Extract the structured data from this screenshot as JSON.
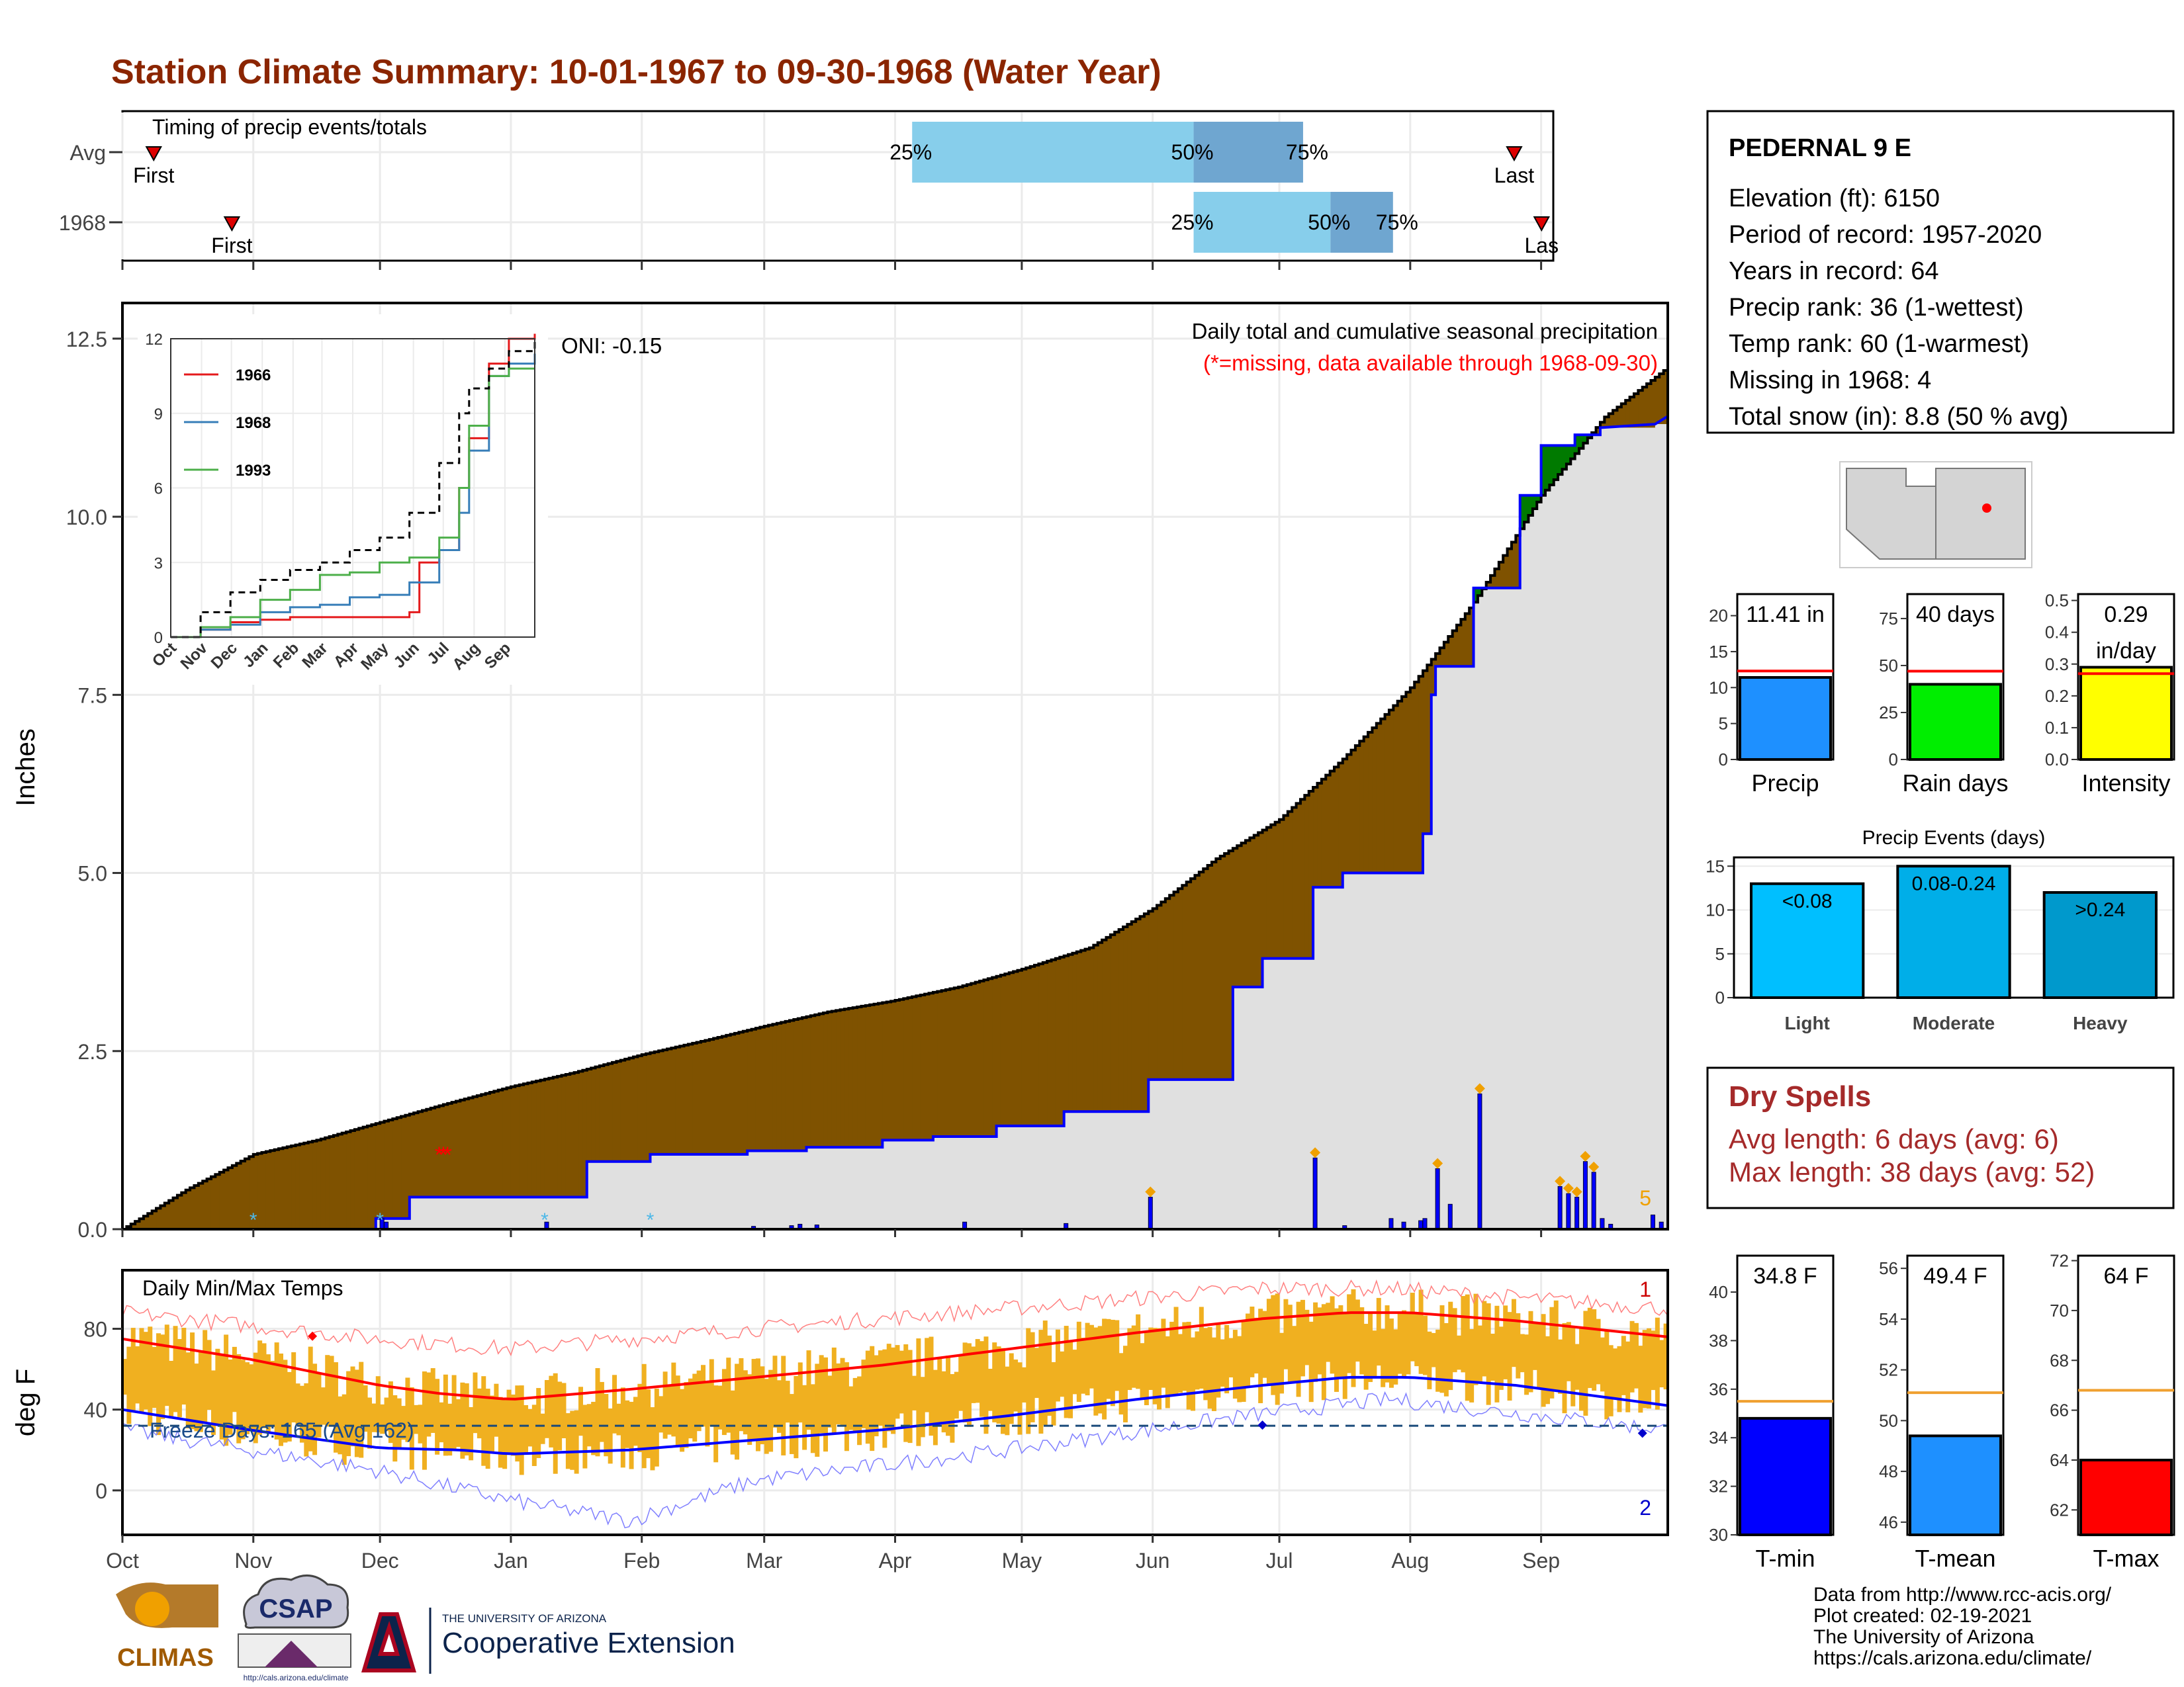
{
  "title": "Station Climate Summary: 10-01-1967 to 09-30-1968 (Water Year)",
  "colors": {
    "title": "#8B2500",
    "precip_bar": "#0000ff",
    "normal_fill": "#7f5200",
    "deficit_fill": "#007a00",
    "temp_band": "#f0b020",
    "red": "#ff0000",
    "blue": "#0000ff"
  },
  "timing": {
    "label": "Timing of precip events/totals",
    "rows": [
      {
        "name": "Avg",
        "first_label": "First",
        "last_label": "Last",
        "q25": "25%",
        "q50": "50%",
        "q75": "75%"
      },
      {
        "name": "1968",
        "first_label": "First",
        "last_label": "Las",
        "q25": "25%",
        "q50": "50%",
        "q75": "75%"
      }
    ]
  },
  "station": {
    "name": "PEDERNAL 9 E",
    "lines": [
      "Elevation (ft): 6150",
      "Period of record: 1957-2020",
      "Years in record: 64",
      "Precip rank: 36 (1-wettest)",
      "Temp rank: 60 (1-warmest)",
      "Missing in 1968: 4",
      "Total snow (in): 8.8 (50 % avg)"
    ]
  },
  "precip_panel": {
    "ylabel": "Inches",
    "subtitle": "Daily total and cumulative seasonal precipitation",
    "note": "(*=missing, data available through 1968-09-30)",
    "oni": "ONI: -0.15",
    "corner": "5"
  },
  "temp_panel": {
    "label": "Daily Min/Max Temps",
    "ylabel": "deg F",
    "freeze": "Freeze Days: 165 (Avg 162)",
    "rec_high": "1",
    "rec_low": "2"
  },
  "months": [
    "Oct",
    "Nov",
    "Dec",
    "Jan",
    "Feb",
    "Mar",
    "Apr",
    "May",
    "Jun",
    "Jul",
    "Aug",
    "Sep"
  ],
  "inset": {
    "months": [
      "Oct",
      "Nov",
      "Dec",
      "Jan",
      "Feb",
      "Mar",
      "Apr",
      "May",
      "Jun",
      "Jul",
      "Aug",
      "Sep"
    ],
    "legend": [
      {
        "name": "1966",
        "color": "#e41a1c"
      },
      {
        "name": "1968",
        "color": "#377eb8"
      },
      {
        "name": "1993",
        "color": "#4daf4a"
      }
    ]
  },
  "mini_bars": [
    {
      "label": "Precip",
      "value_text": "11.41 in",
      "color": "#1e90ff"
    },
    {
      "label": "Rain days",
      "value_text": "40 days",
      "color": "#00ee00"
    },
    {
      "label": "Intensity",
      "value_text": "0.29\nin/day",
      "color": "#ffff00"
    }
  ],
  "events": {
    "title": "Precip Events (days)",
    "bars": [
      {
        "label": "Light",
        "value_text": "<0.08",
        "color": "#00bfff"
      },
      {
        "label": "Moderate",
        "value_text": "0.08-0.24",
        "color": "#00aee8"
      },
      {
        "label": "Heavy",
        "value_text": ">0.24",
        "color": "#0099cc"
      }
    ]
  },
  "dry_spells": {
    "title": "Dry Spells",
    "avg": "Avg length: 6 days (avg: 6)",
    "max": "Max length: 38 days (avg: 52)"
  },
  "temp_bars": [
    {
      "label": "T-min",
      "value_text": "34.8 F",
      "color": "#0000ff"
    },
    {
      "label": "T-mean",
      "value_text": "49.4 F",
      "color": "#1e90ff"
    },
    {
      "label": "T-max",
      "value_text": "64 F",
      "color": "#ff0000"
    }
  ],
  "footer": [
    "Data from http://www.rcc-acis.org/",
    "Plot created: 02-19-2021",
    "The University of Arizona",
    "https://cals.arizona.edu/climate/"
  ],
  "logos": {
    "climas": "CLIMAS",
    "csap": "CSAP",
    "csap_url": "http://cals.arizona.edu/climate",
    "ua_small": "THE UNIVERSITY OF ARIZONA",
    "ua_big": "Cooperative Extension"
  },
  "chart_data": [
    {
      "type": "area",
      "name": "cumulative precipitation",
      "ylim": [
        0,
        13
      ],
      "yticks": [
        0.0,
        2.5,
        5.0,
        7.5,
        10.0,
        12.5
      ],
      "normal_cumulative": [
        [
          0,
          0
        ],
        [
          15,
          0.55
        ],
        [
          31,
          1.05
        ],
        [
          46,
          1.25
        ],
        [
          61,
          1.5
        ],
        [
          76,
          1.75
        ],
        [
          92,
          2.0
        ],
        [
          107,
          2.2
        ],
        [
          123,
          2.45
        ],
        [
          138,
          2.65
        ],
        [
          152,
          2.85
        ],
        [
          167,
          3.05
        ],
        [
          182,
          3.2
        ],
        [
          198,
          3.4
        ],
        [
          213,
          3.65
        ],
        [
          229,
          3.95
        ],
        [
          244,
          4.5
        ],
        [
          259,
          5.2
        ],
        [
          274,
          5.75
        ],
        [
          289,
          6.6
        ],
        [
          305,
          7.6
        ],
        [
          320,
          8.8
        ],
        [
          336,
          10.3
        ],
        [
          351,
          11.4
        ],
        [
          366,
          12.1
        ]
      ],
      "observed_cumulative": [
        [
          0,
          0
        ],
        [
          60,
          0
        ],
        [
          60,
          0.15
        ],
        [
          68,
          0.15
        ],
        [
          68,
          0.45
        ],
        [
          110,
          0.45
        ],
        [
          110,
          0.95
        ],
        [
          125,
          0.95
        ],
        [
          125,
          1.05
        ],
        [
          148,
          1.05
        ],
        [
          148,
          1.1
        ],
        [
          162,
          1.1
        ],
        [
          162,
          1.15
        ],
        [
          180,
          1.15
        ],
        [
          180,
          1.25
        ],
        [
          192,
          1.25
        ],
        [
          192,
          1.3
        ],
        [
          207,
          1.3
        ],
        [
          207,
          1.45
        ],
        [
          223,
          1.45
        ],
        [
          223,
          1.65
        ],
        [
          243,
          1.65
        ],
        [
          243,
          2.1
        ],
        [
          263,
          2.1
        ],
        [
          263,
          3.4
        ],
        [
          270,
          3.4
        ],
        [
          270,
          3.8
        ],
        [
          282,
          3.8
        ],
        [
          282,
          4.8
        ],
        [
          289,
          4.8
        ],
        [
          289,
          5.0
        ],
        [
          308,
          5.0
        ],
        [
          308,
          5.55
        ],
        [
          310,
          5.55
        ],
        [
          310,
          7.5
        ],
        [
          311,
          7.5
        ],
        [
          311,
          7.9
        ],
        [
          320,
          7.9
        ],
        [
          320,
          9.0
        ],
        [
          331,
          9.0
        ],
        [
          331,
          10.3
        ],
        [
          336,
          10.3
        ],
        [
          336,
          11.0
        ],
        [
          344,
          11.0
        ],
        [
          344,
          11.15
        ],
        [
          350,
          11.15
        ],
        [
          350,
          11.25
        ],
        [
          363,
          11.3
        ],
        [
          366,
          11.41
        ]
      ],
      "daily_bars": [
        [
          61,
          0.15
        ],
        [
          62,
          0.1
        ],
        [
          100,
          0.1
        ],
        [
          149,
          0.04
        ],
        [
          158,
          0.05
        ],
        [
          160,
          0.07
        ],
        [
          164,
          0.06
        ],
        [
          199,
          0.1
        ],
        [
          223,
          0.08
        ],
        [
          243,
          0.45
        ],
        [
          282,
          1.0
        ],
        [
          289,
          0.05
        ],
        [
          300,
          0.15
        ],
        [
          303,
          0.1
        ],
        [
          307,
          0.12
        ],
        [
          308,
          0.15
        ],
        [
          311,
          0.85
        ],
        [
          314,
          0.35
        ],
        [
          321,
          1.9
        ],
        [
          340,
          0.6
        ],
        [
          342,
          0.5
        ],
        [
          344,
          0.45
        ],
        [
          346,
          0.95
        ],
        [
          348,
          0.8
        ],
        [
          350,
          0.15
        ],
        [
          352,
          0.07
        ],
        [
          362,
          0.2
        ],
        [
          364,
          0.1
        ]
      ],
      "missing_days": [
        31,
        61,
        100,
        125
      ]
    },
    {
      "type": "line",
      "name": "inset cumulative",
      "ylim": [
        0,
        12
      ],
      "yticks": [
        0,
        3,
        6,
        9,
        12
      ],
      "series": [
        {
          "name": "1966",
          "values": [
            [
              0,
              0
            ],
            [
              30,
              0.3
            ],
            [
              60,
              0.6
            ],
            [
              90,
              0.7
            ],
            [
              120,
              0.8
            ],
            [
              150,
              0.8
            ],
            [
              180,
              0.8
            ],
            [
              210,
              0.8
            ],
            [
              240,
              1.0
            ],
            [
              250,
              3.0
            ],
            [
              270,
              3.5
            ],
            [
              290,
              6.0
            ],
            [
              300,
              8.0
            ],
            [
              320,
              11.0
            ],
            [
              340,
              12.0
            ],
            [
              366,
              12.2
            ]
          ]
        },
        {
          "name": "1968",
          "values": [
            [
              0,
              0
            ],
            [
              30,
              0.3
            ],
            [
              60,
              0.5
            ],
            [
              90,
              1.0
            ],
            [
              120,
              1.2
            ],
            [
              150,
              1.3
            ],
            [
              180,
              1.6
            ],
            [
              210,
              1.7
            ],
            [
              240,
              2.2
            ],
            [
              270,
              3.5
            ],
            [
              290,
              5.0
            ],
            [
              300,
              7.5
            ],
            [
              320,
              10.5
            ],
            [
              340,
              11.0
            ],
            [
              366,
              11.4
            ]
          ]
        },
        {
          "name": "1993",
          "values": [
            [
              0,
              0
            ],
            [
              30,
              0.4
            ],
            [
              60,
              0.8
            ],
            [
              90,
              1.5
            ],
            [
              120,
              1.9
            ],
            [
              150,
              2.5
            ],
            [
              180,
              2.6
            ],
            [
              210,
              3.0
            ],
            [
              240,
              3.2
            ],
            [
              270,
              4.0
            ],
            [
              290,
              6.0
            ],
            [
              300,
              8.5
            ],
            [
              320,
              10.5
            ],
            [
              340,
              10.8
            ],
            [
              366,
              10.8
            ]
          ]
        },
        {
          "name": "avg",
          "values": [
            [
              0,
              0
            ],
            [
              30,
              1.0
            ],
            [
              60,
              1.8
            ],
            [
              90,
              2.3
            ],
            [
              120,
              2.7
            ],
            [
              150,
              3.0
            ],
            [
              180,
              3.5
            ],
            [
              210,
              4.0
            ],
            [
              240,
              5.0
            ],
            [
              270,
              7.0
            ],
            [
              290,
              9.0
            ],
            [
              300,
              10.0
            ],
            [
              320,
              10.8
            ],
            [
              340,
              11.5
            ],
            [
              366,
              12.0
            ]
          ]
        }
      ]
    },
    {
      "type": "line",
      "name": "daily temperatures",
      "ylim": [
        -22,
        109
      ],
      "yticks": [
        0,
        40,
        80
      ],
      "normal_max": [
        [
          0,
          75
        ],
        [
          30,
          65
        ],
        [
          61,
          52
        ],
        [
          75,
          48
        ],
        [
          92,
          45
        ],
        [
          120,
          50
        ],
        [
          150,
          56
        ],
        [
          180,
          62
        ],
        [
          210,
          70
        ],
        [
          240,
          78
        ],
        [
          270,
          85
        ],
        [
          290,
          88
        ],
        [
          305,
          88
        ],
        [
          330,
          84
        ],
        [
          366,
          76
        ]
      ],
      "normal_min": [
        [
          0,
          40
        ],
        [
          30,
          30
        ],
        [
          61,
          21
        ],
        [
          80,
          20
        ],
        [
          92,
          18
        ],
        [
          120,
          20
        ],
        [
          150,
          25
        ],
        [
          180,
          30
        ],
        [
          210,
          37
        ],
        [
          240,
          45
        ],
        [
          270,
          52
        ],
        [
          290,
          56
        ],
        [
          305,
          56
        ],
        [
          330,
          52
        ],
        [
          366,
          42
        ]
      ],
      "record_high": [
        [
          0,
          88
        ],
        [
          60,
          75
        ],
        [
          92,
          70
        ],
        [
          150,
          80
        ],
        [
          210,
          90
        ],
        [
          270,
          100
        ],
        [
          300,
          100
        ],
        [
          366,
          90
        ]
      ],
      "record_low": [
        [
          0,
          30
        ],
        [
          60,
          10
        ],
        [
          92,
          -5
        ],
        [
          120,
          -15
        ],
        [
          150,
          5
        ],
        [
          210,
          20
        ],
        [
          270,
          38
        ],
        [
          300,
          45
        ],
        [
          366,
          30
        ]
      ],
      "freeze_line": 32
    },
    {
      "type": "bar",
      "name": "Precip",
      "values": [
        11.41
      ],
      "avg": 12.3,
      "ylim": [
        0,
        23
      ],
      "yticks": [
        0,
        5,
        10,
        15,
        20
      ]
    },
    {
      "type": "bar",
      "name": "Rain days",
      "values": [
        40
      ],
      "avg": 47,
      "ylim": [
        0,
        88
      ],
      "yticks": [
        0,
        25,
        50,
        75
      ]
    },
    {
      "type": "bar",
      "name": "Intensity",
      "values": [
        0.29
      ],
      "avg": 0.27,
      "ylim": [
        0,
        0.52
      ],
      "yticks": [
        0.0,
        0.1,
        0.2,
        0.3,
        0.4,
        0.5
      ]
    },
    {
      "type": "bar",
      "name": "Precip Events (days)",
      "categories": [
        "Light",
        "Moderate",
        "Heavy"
      ],
      "values": [
        13,
        15,
        12
      ],
      "ylim": [
        0,
        16
      ],
      "yticks": [
        0,
        5,
        10,
        15
      ]
    },
    {
      "type": "bar",
      "name": "T-min",
      "values": [
        34.8
      ],
      "avg": 35.5,
      "ylim": [
        30,
        41.5
      ],
      "yticks": [
        30,
        32,
        34,
        36,
        38,
        40
      ]
    },
    {
      "type": "bar",
      "name": "T-mean",
      "values": [
        49.4
      ],
      "avg": 51.1,
      "ylim": [
        45.5,
        56.5
      ],
      "yticks": [
        46,
        48,
        50,
        52,
        54,
        56
      ]
    },
    {
      "type": "bar",
      "name": "T-max",
      "values": [
        64
      ],
      "avg": 66.8,
      "ylim": [
        61,
        72.2
      ],
      "yticks": [
        62,
        64,
        66,
        68,
        70,
        72
      ]
    }
  ]
}
